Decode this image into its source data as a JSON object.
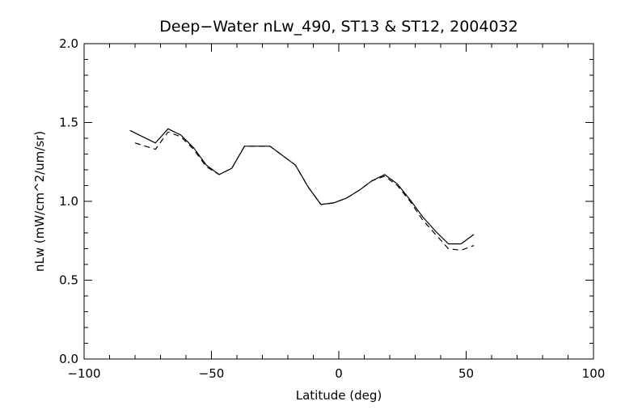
{
  "chart_data": {
    "type": "line",
    "title": "Deep−Water nLw_490, ST13 & ST12, 2004032",
    "xlabel": "Latitude (deg)",
    "ylabel": "nLw (mW/cm^2/um/sr)",
    "xlim": [
      -100,
      100
    ],
    "ylim": [
      0.0,
      2.0
    ],
    "x_ticks": [
      -100,
      -50,
      0,
      50,
      100
    ],
    "x_tick_labels": [
      "−100",
      "−50",
      "0",
      "50",
      "100"
    ],
    "y_ticks": [
      0.0,
      0.5,
      1.0,
      1.5,
      2.0
    ],
    "y_tick_labels": [
      "0.0",
      "0.5",
      "1.0",
      "1.5",
      "2.0"
    ],
    "grid": false,
    "legend": "none",
    "series": [
      {
        "style": "solid",
        "color": "#000000",
        "x": [
          -82,
          -72,
          -67,
          -62,
          -57,
          -52,
          -47,
          -42,
          -37,
          -27,
          -17,
          -12,
          -7,
          -2,
          3,
          8,
          13,
          18,
          23,
          28,
          33,
          38,
          43,
          48,
          53
        ],
        "y": [
          1.45,
          1.37,
          1.46,
          1.42,
          1.34,
          1.23,
          1.17,
          1.21,
          1.35,
          1.35,
          1.23,
          1.09,
          0.98,
          0.99,
          1.02,
          1.07,
          1.13,
          1.17,
          1.11,
          1.01,
          0.9,
          0.81,
          0.73,
          0.73,
          0.79
        ]
      },
      {
        "style": "dashed",
        "color": "#000000",
        "x": [
          -80,
          -72,
          -67,
          -62,
          -57,
          -52,
          -47,
          -42,
          -37,
          -27,
          -17,
          -12,
          -7,
          -2,
          3,
          8,
          13,
          18,
          23,
          28,
          33,
          38,
          43,
          48,
          53
        ],
        "y": [
          1.37,
          1.33,
          1.44,
          1.41,
          1.33,
          1.22,
          1.17,
          1.21,
          1.35,
          1.35,
          1.23,
          1.09,
          0.98,
          0.99,
          1.02,
          1.07,
          1.13,
          1.16,
          1.1,
          1.0,
          0.88,
          0.79,
          0.7,
          0.69,
          0.72
        ]
      }
    ]
  }
}
